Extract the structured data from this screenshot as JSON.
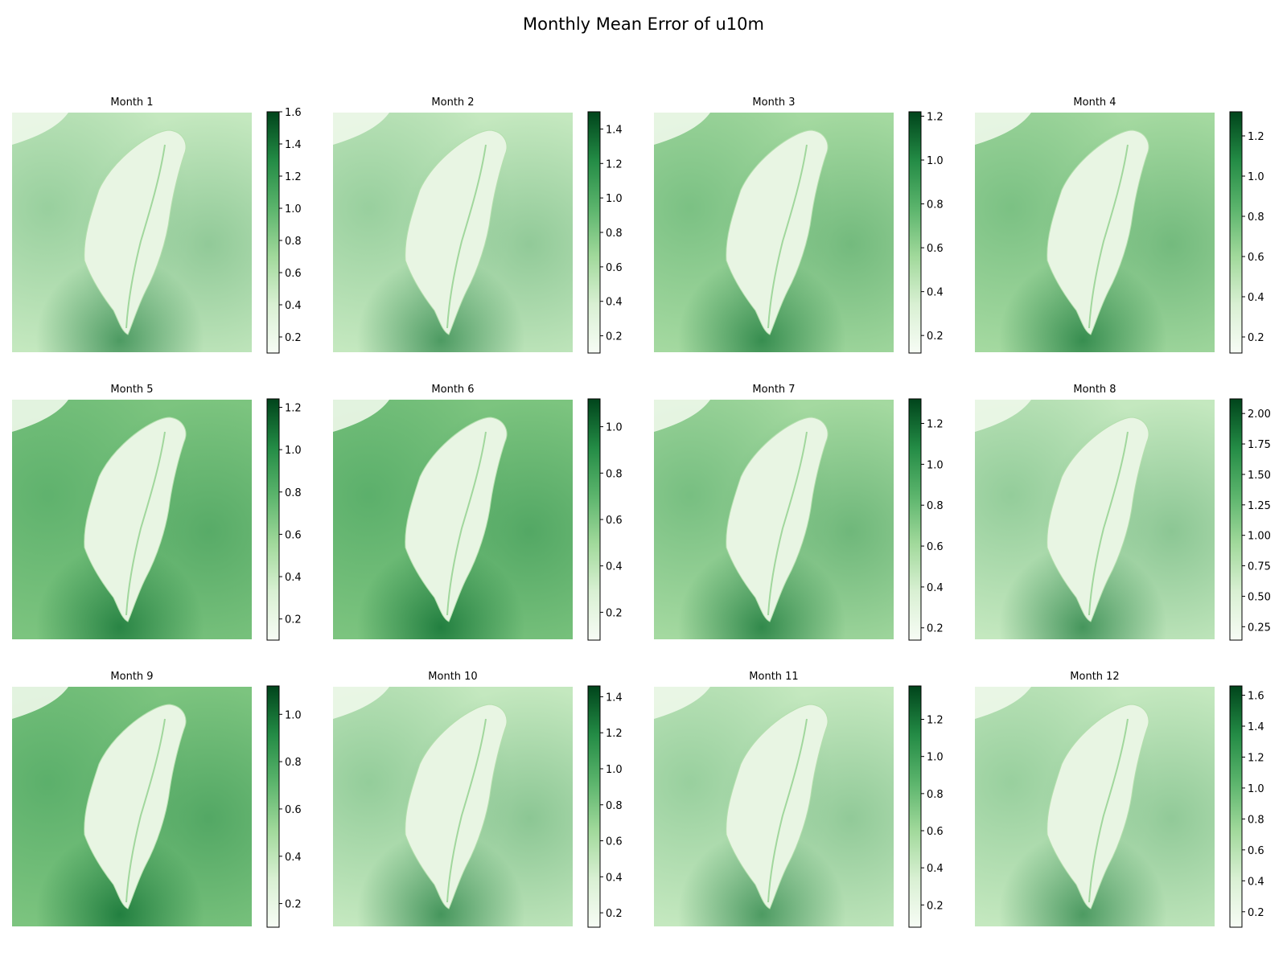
{
  "figure": {
    "title": "Monthly Mean Error of u10m"
  },
  "chart_data": [
    {
      "type": "heatmap",
      "title": "Month 1",
      "cmap": "Greens",
      "colorbar": {
        "range": [
          0.1,
          1.6
        ],
        "ticks": [
          "0.2",
          "0.4",
          "0.6",
          "0.8",
          "1.0",
          "1.2",
          "1.4",
          "1.6"
        ]
      },
      "intensity": 0.45
    },
    {
      "type": "heatmap",
      "title": "Month 2",
      "cmap": "Greens",
      "colorbar": {
        "range": [
          0.1,
          1.5
        ],
        "ticks": [
          "0.2",
          "0.4",
          "0.6",
          "0.8",
          "1.0",
          "1.2",
          "1.4"
        ]
      },
      "intensity": 0.45
    },
    {
      "type": "heatmap",
      "title": "Month 3",
      "cmap": "Greens",
      "colorbar": {
        "range": [
          0.12,
          1.22
        ],
        "ticks": [
          "0.2",
          "0.4",
          "0.6",
          "0.8",
          "1.0",
          "1.2"
        ]
      },
      "intensity": 0.55
    },
    {
      "type": "heatmap",
      "title": "Month 4",
      "cmap": "Greens",
      "colorbar": {
        "range": [
          0.12,
          1.32
        ],
        "ticks": [
          "0.2",
          "0.4",
          "0.6",
          "0.8",
          "1.0",
          "1.2"
        ]
      },
      "intensity": 0.55
    },
    {
      "type": "heatmap",
      "title": "Month 5",
      "cmap": "Greens",
      "colorbar": {
        "range": [
          0.1,
          1.24
        ],
        "ticks": [
          "0.2",
          "0.4",
          "0.6",
          "0.8",
          "1.0",
          "1.2"
        ]
      },
      "intensity": 0.62
    },
    {
      "type": "heatmap",
      "title": "Month 6",
      "cmap": "Greens",
      "colorbar": {
        "range": [
          0.08,
          1.12
        ],
        "ticks": [
          "0.2",
          "0.4",
          "0.6",
          "0.8",
          "1.0"
        ]
      },
      "intensity": 0.7
    },
    {
      "type": "heatmap",
      "title": "Month 7",
      "cmap": "Greens",
      "colorbar": {
        "range": [
          0.14,
          1.32
        ],
        "ticks": [
          "0.2",
          "0.4",
          "0.6",
          "0.8",
          "1.0",
          "1.2"
        ]
      },
      "intensity": 0.6
    },
    {
      "type": "heatmap",
      "title": "Month 8",
      "cmap": "Greens",
      "colorbar": {
        "range": [
          0.14,
          2.12
        ],
        "ticks": [
          "0.25",
          "0.50",
          "0.75",
          "1.00",
          "1.25",
          "1.50",
          "1.75",
          "2.00"
        ]
      },
      "intensity": 0.5
    },
    {
      "type": "heatmap",
      "title": "Month 9",
      "cmap": "Greens",
      "colorbar": {
        "range": [
          0.1,
          1.12
        ],
        "ticks": [
          "0.2",
          "0.4",
          "0.6",
          "0.8",
          "1.0"
        ]
      },
      "intensity": 0.7
    },
    {
      "type": "heatmap",
      "title": "Month 10",
      "cmap": "Greens",
      "colorbar": {
        "range": [
          0.12,
          1.46
        ],
        "ticks": [
          "0.2",
          "0.4",
          "0.6",
          "0.8",
          "1.0",
          "1.2",
          "1.4"
        ]
      },
      "intensity": 0.5
    },
    {
      "type": "heatmap",
      "title": "Month 11",
      "cmap": "Greens",
      "colorbar": {
        "range": [
          0.08,
          1.38
        ],
        "ticks": [
          "0.2",
          "0.4",
          "0.6",
          "0.8",
          "1.0",
          "1.2"
        ]
      },
      "intensity": 0.45
    },
    {
      "type": "heatmap",
      "title": "Month 12",
      "cmap": "Greens",
      "colorbar": {
        "range": [
          0.1,
          1.66
        ],
        "ticks": [
          "0.2",
          "0.4",
          "0.6",
          "0.8",
          "1.0",
          "1.2",
          "1.4",
          "1.6"
        ]
      },
      "intensity": 0.45
    }
  ]
}
